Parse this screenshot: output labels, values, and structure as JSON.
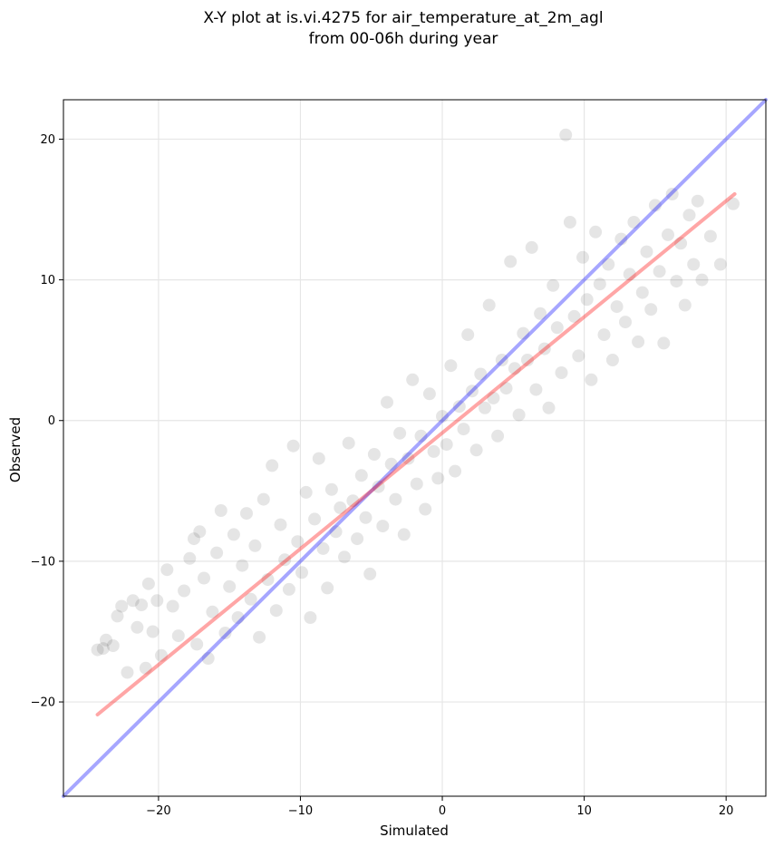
{
  "chart_data": {
    "type": "scatter",
    "title_line1": "X-Y plot at is.vi.4275 for air_temperature_at_2m_agl",
    "title_line2": "from 00-06h during year",
    "xlabel": "Simulated",
    "ylabel": "Observed",
    "xlim": [
      -26.7,
      22.8
    ],
    "ylim": [
      -26.7,
      22.8
    ],
    "xticks": [
      -20,
      -10,
      0,
      10,
      20
    ],
    "yticks": [
      -20,
      -10,
      0,
      10,
      20
    ],
    "xtick_labels": [
      "−20",
      "−10",
      "0",
      "10",
      "20"
    ],
    "ytick_labels": [
      "−20",
      "−10",
      "0",
      "10",
      "20"
    ],
    "grid": true,
    "colors": {
      "points": "#000000",
      "identity_line": "#0000ff",
      "fit_line": "#ff0000",
      "grid": "#e6e6e6"
    },
    "identity_line": {
      "x": [
        -26.7,
        22.8
      ],
      "y": [
        -26.7,
        22.8
      ]
    },
    "fit_line": {
      "x": [
        -24.3,
        20.6
      ],
      "y": [
        -20.9,
        16.1
      ]
    },
    "series": [
      {
        "values": [
          [
            -24.3,
            -16.3
          ],
          [
            -23.9,
            -16.2
          ],
          [
            -23.7,
            -15.6
          ],
          [
            -23.2,
            -16.0
          ],
          [
            -22.9,
            -13.9
          ],
          [
            -22.6,
            -13.2
          ],
          [
            -22.2,
            -17.9
          ],
          [
            -21.8,
            -12.8
          ],
          [
            -21.5,
            -14.7
          ],
          [
            -21.2,
            -13.1
          ],
          [
            -20.9,
            -17.6
          ],
          [
            -20.7,
            -11.6
          ],
          [
            -20.4,
            -15.0
          ],
          [
            -20.1,
            -12.8
          ],
          [
            -19.8,
            -16.7
          ],
          [
            -19.4,
            -10.6
          ],
          [
            -19.0,
            -13.2
          ],
          [
            -18.6,
            -15.3
          ],
          [
            -18.2,
            -12.1
          ],
          [
            -17.8,
            -9.8
          ],
          [
            -17.5,
            -8.4
          ],
          [
            -17.3,
            -15.9
          ],
          [
            -17.1,
            -7.9
          ],
          [
            -16.8,
            -11.2
          ],
          [
            -16.5,
            -16.9
          ],
          [
            -16.2,
            -13.6
          ],
          [
            -15.9,
            -9.4
          ],
          [
            -15.6,
            -6.4
          ],
          [
            -15.3,
            -15.1
          ],
          [
            -15.0,
            -11.8
          ],
          [
            -14.7,
            -8.1
          ],
          [
            -14.4,
            -14.0
          ],
          [
            -14.1,
            -10.3
          ],
          [
            -13.8,
            -6.6
          ],
          [
            -13.5,
            -12.7
          ],
          [
            -13.2,
            -8.9
          ],
          [
            -12.9,
            -15.4
          ],
          [
            -12.6,
            -5.6
          ],
          [
            -12.3,
            -11.3
          ],
          [
            -12.0,
            -3.2
          ],
          [
            -11.7,
            -13.5
          ],
          [
            -11.4,
            -7.4
          ],
          [
            -11.1,
            -9.9
          ],
          [
            -10.8,
            -12.0
          ],
          [
            -10.5,
            -1.8
          ],
          [
            -10.2,
            -8.6
          ],
          [
            -9.9,
            -10.8
          ],
          [
            -9.6,
            -5.1
          ],
          [
            -9.3,
            -14.0
          ],
          [
            -9.0,
            -7.0
          ],
          [
            -8.7,
            -2.7
          ],
          [
            -8.4,
            -9.1
          ],
          [
            -8.1,
            -11.9
          ],
          [
            -7.8,
            -4.9
          ],
          [
            -7.5,
            -7.9
          ],
          [
            -7.2,
            -6.2
          ],
          [
            -6.9,
            -9.7
          ],
          [
            -6.6,
            -1.6
          ],
          [
            -6.3,
            -5.7
          ],
          [
            -6.0,
            -8.4
          ],
          [
            -5.7,
            -3.9
          ],
          [
            -5.4,
            -6.9
          ],
          [
            -5.1,
            -10.9
          ],
          [
            -4.8,
            -2.4
          ],
          [
            -4.5,
            -4.7
          ],
          [
            -4.2,
            -7.5
          ],
          [
            -3.9,
            1.3
          ],
          [
            -3.6,
            -3.1
          ],
          [
            -3.3,
            -5.6
          ],
          [
            -3.0,
            -0.9
          ],
          [
            -2.7,
            -8.1
          ],
          [
            -2.4,
            -2.7
          ],
          [
            -2.1,
            2.9
          ],
          [
            -1.8,
            -4.5
          ],
          [
            -1.5,
            -1.1
          ],
          [
            -1.2,
            -6.3
          ],
          [
            -0.9,
            1.9
          ],
          [
            -0.6,
            -2.2
          ],
          [
            -0.3,
            -4.1
          ],
          [
            0.0,
            0.3
          ],
          [
            0.3,
            -1.7
          ],
          [
            0.6,
            3.9
          ],
          [
            0.9,
            -3.6
          ],
          [
            1.2,
            1.0
          ],
          [
            1.5,
            -0.6
          ],
          [
            1.8,
            6.1
          ],
          [
            2.1,
            2.1
          ],
          [
            2.4,
            -2.1
          ],
          [
            2.7,
            3.3
          ],
          [
            3.0,
            0.9
          ],
          [
            3.3,
            8.2
          ],
          [
            3.6,
            1.6
          ],
          [
            3.9,
            -1.1
          ],
          [
            4.2,
            4.3
          ],
          [
            4.5,
            2.3
          ],
          [
            4.8,
            11.3
          ],
          [
            5.1,
            3.7
          ],
          [
            5.4,
            0.4
          ],
          [
            5.7,
            6.2
          ],
          [
            6.0,
            4.3
          ],
          [
            6.3,
            12.3
          ],
          [
            6.6,
            2.2
          ],
          [
            6.9,
            7.6
          ],
          [
            7.2,
            5.1
          ],
          [
            7.5,
            0.9
          ],
          [
            7.8,
            9.6
          ],
          [
            8.1,
            6.6
          ],
          [
            8.4,
            3.4
          ],
          [
            8.7,
            20.3
          ],
          [
            9.0,
            14.1
          ],
          [
            9.3,
            7.4
          ],
          [
            9.6,
            4.6
          ],
          [
            9.9,
            11.6
          ],
          [
            10.2,
            8.6
          ],
          [
            10.5,
            2.9
          ],
          [
            10.8,
            13.4
          ],
          [
            11.1,
            9.7
          ],
          [
            11.4,
            6.1
          ],
          [
            11.7,
            11.1
          ],
          [
            12.0,
            4.3
          ],
          [
            12.3,
            8.1
          ],
          [
            12.6,
            12.9
          ],
          [
            12.9,
            7.0
          ],
          [
            13.2,
            10.4
          ],
          [
            13.5,
            14.1
          ],
          [
            13.8,
            5.6
          ],
          [
            14.1,
            9.1
          ],
          [
            14.4,
            12.0
          ],
          [
            14.7,
            7.9
          ],
          [
            15.0,
            15.3
          ],
          [
            15.3,
            10.6
          ],
          [
            15.6,
            5.5
          ],
          [
            15.9,
            13.2
          ],
          [
            16.2,
            16.1
          ],
          [
            16.5,
            9.9
          ],
          [
            16.8,
            12.6
          ],
          [
            17.1,
            8.2
          ],
          [
            17.4,
            14.6
          ],
          [
            17.7,
            11.1
          ],
          [
            18.0,
            15.6
          ],
          [
            18.3,
            10.0
          ],
          [
            18.9,
            13.1
          ],
          [
            19.6,
            11.1
          ],
          [
            20.5,
            15.4
          ]
        ]
      }
    ]
  }
}
